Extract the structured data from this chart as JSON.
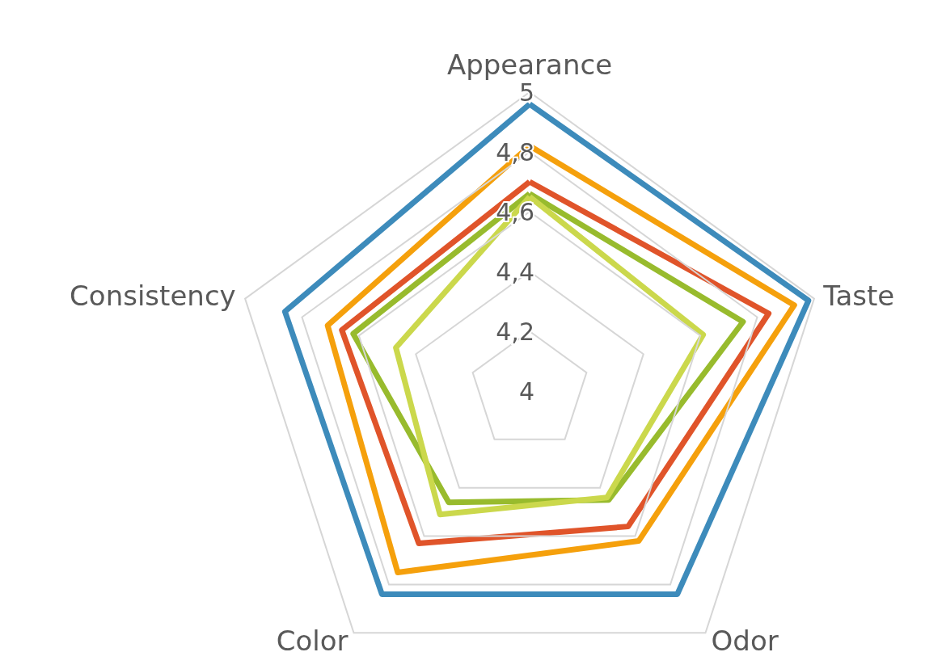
{
  "chart_data": {
    "type": "radar",
    "categories": [
      "Appearance",
      "Taste",
      "Odor",
      "Color",
      "Consistency"
    ],
    "series": [
      {
        "color": "#3d8bbb",
        "values": [
          4.96,
          4.98,
          4.84,
          4.84,
          4.86
        ]
      },
      {
        "color": "#f5a00c",
        "values": [
          4.82,
          4.93,
          4.62,
          4.75,
          4.71
        ]
      },
      {
        "color": "#e0542a",
        "values": [
          4.7,
          4.84,
          4.56,
          4.63,
          4.66
        ]
      },
      {
        "color": "#98bb2d",
        "values": [
          4.66,
          4.75,
          4.45,
          4.46,
          4.62
        ]
      },
      {
        "color": "#cbd84c",
        "values": [
          4.65,
          4.61,
          4.44,
          4.51,
          4.47
        ]
      }
    ],
    "ylim": [
      4,
      5
    ],
    "yticks": [
      4,
      {
        "value": 4.2,
        "label": "4,2"
      },
      {
        "value": 4.4,
        "label": "4,4"
      },
      {
        "value": 4.6,
        "label": "4,6"
      },
      {
        "value": 4.8,
        "label": "4,8"
      },
      5
    ],
    "grid": true,
    "marker": "none",
    "line_style": "solid"
  }
}
